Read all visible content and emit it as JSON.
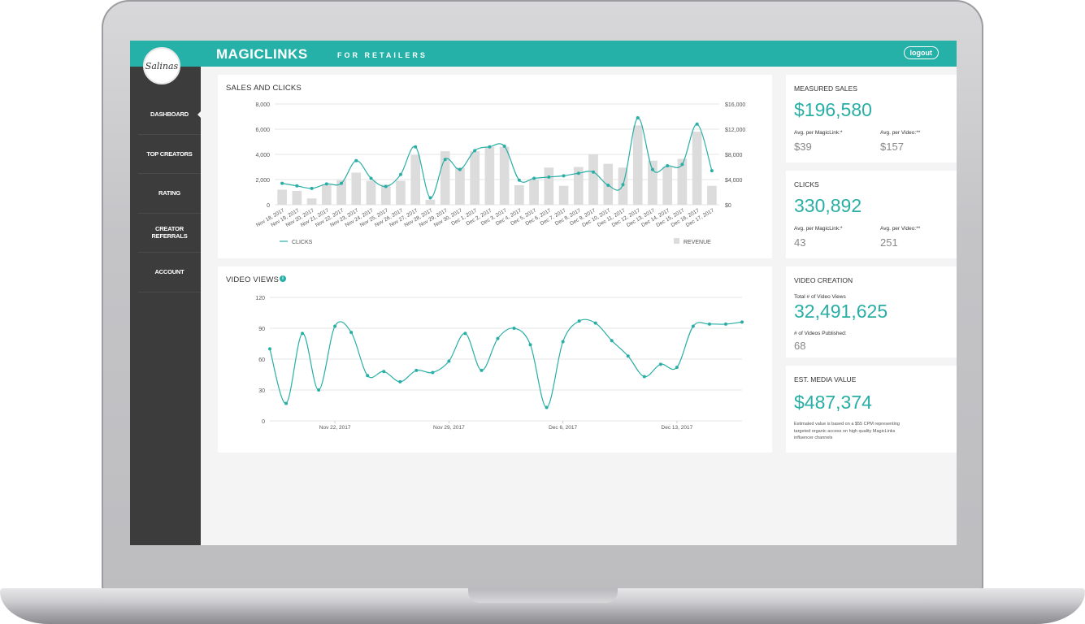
{
  "header": {
    "brand": "MAGICLINKS",
    "brand_sub": "FOR RETAILERS",
    "logout_label": "logout",
    "avatar_text": "Salinas",
    "accent_color": "#26b1a8"
  },
  "sidebar": {
    "items": [
      {
        "label": "DASHBOARD",
        "active": true
      },
      {
        "label": "TOP CREATORS"
      },
      {
        "label": "RATING"
      },
      {
        "label": "CREATOR REFERRALS"
      },
      {
        "label": "ACCOUNT"
      }
    ]
  },
  "stats": {
    "measured_sales": {
      "title": "MEASURED SALES",
      "value": "$196,580",
      "sub1_label": "Avg. per MagicLink:*",
      "sub1_value": "$39",
      "sub2_label": "Avg. per Video:**",
      "sub2_value": "$157"
    },
    "clicks": {
      "title": "CLICKS",
      "value": "330,892",
      "sub1_label": "Avg. per MagicLink:*",
      "sub1_value": "43",
      "sub2_label": "Avg. per Video:**",
      "sub2_value": "251"
    },
    "video_creation": {
      "title": "VIDEO CREATION",
      "label1": "Total # of Video Views",
      "value": "32,491,625",
      "label2": "# of Videos Published:",
      "value2": "68"
    },
    "media_value": {
      "title": "EST. MEDIA VALUE",
      "value": "$487,374",
      "note": "Estimated value is based on a $55 CPM representing targeted organic access on high quality MagicLinks influencer channels"
    }
  },
  "chart_data": [
    {
      "type": "bar",
      "title": "SALES AND CLICKS",
      "categories": [
        "Nov 18, 2017",
        "Nov 19, 2017",
        "Nov 20, 2017",
        "Nov 21, 2017",
        "Nov 22, 2017",
        "Nov 23, 2017",
        "Nov 24, 2017",
        "Nov 25, 2017",
        "Nov 26, 2017",
        "Nov 27, 2017",
        "Nov 28, 2017",
        "Nov 29, 2017",
        "Nov 30, 2017",
        "Dec 1, 2017",
        "Dec 2, 2017",
        "Dec 3, 2017",
        "Dec 4, 2017",
        "Dec 5, 2017",
        "Dec 6, 2017",
        "Dec 7, 2017",
        "Dec 8, 2017",
        "Dec 9, 2017",
        "Dec 10, 2017",
        "Dec 11, 2017",
        "Dec 12, 2017",
        "Dec 13, 2017",
        "Dec 14, 2017",
        "Dec 15, 2017",
        "Dec 16, 2017",
        "Dec 17, 2017"
      ],
      "series": [
        {
          "name": "CLICKS",
          "type": "line",
          "axis": "left",
          "color": "#29aea5",
          "values": [
            1700,
            1500,
            1300,
            1650,
            1700,
            3500,
            2100,
            1450,
            2400,
            4600,
            550,
            3600,
            2800,
            4300,
            4600,
            4650,
            1950,
            2100,
            2200,
            2300,
            2500,
            2600,
            1550,
            1600,
            6900,
            2800,
            3100,
            3200,
            6400,
            2700
          ]
        },
        {
          "name": "REVENUE",
          "type": "bar",
          "axis": "right",
          "color": "#dcdcdc",
          "values": [
            2400,
            2200,
            1000,
            3200,
            3900,
            5100,
            3800,
            3200,
            3800,
            7900,
            800,
            8500,
            5900,
            8500,
            9200,
            9200,
            3100,
            4000,
            5900,
            3000,
            6000,
            8000,
            6500,
            5900,
            12600,
            7000,
            6100,
            7300,
            11600,
            3000
          ]
        }
      ],
      "left_axis": {
        "ticks": [
          "0",
          "2,000",
          "4,000",
          "6,000",
          "8,000"
        ],
        "ylim": [
          0,
          8000
        ]
      },
      "right_axis": {
        "ticks": [
          "$0",
          "$4,000",
          "$8,000",
          "$12,000",
          "$16,000"
        ],
        "ylim": [
          0,
          16000
        ]
      },
      "legend": "bottom",
      "grid": true
    },
    {
      "type": "line",
      "title": "VIDEO VIEWS",
      "color": "#29aea5",
      "x": [
        "Nov 18",
        "Nov 19",
        "Nov 20",
        "Nov 21",
        "Nov 22",
        "Nov 23",
        "Nov 24",
        "Nov 25",
        "Nov 26",
        "Nov 27",
        "Nov 28",
        "Nov 29",
        "Nov 30",
        "Dec 1",
        "Dec 2",
        "Dec 3",
        "Dec 4",
        "Dec 5",
        "Dec 6",
        "Dec 7",
        "Dec 8",
        "Dec 9",
        "Dec 10",
        "Dec 11",
        "Dec 12",
        "Dec 13",
        "Dec 14",
        "Dec 15",
        "Dec 16",
        "Dec 17"
      ],
      "values": [
        70,
        17,
        85,
        30,
        92,
        86,
        44,
        48,
        38,
        49,
        47,
        58,
        85,
        49,
        80,
        90,
        74,
        13,
        77,
        97,
        95,
        78,
        63,
        43,
        55,
        52,
        92,
        94,
        94,
        96
      ],
      "x_ticks": [
        "Nov 22, 2017",
        "Nov 29, 2017",
        "Dec 6, 2017",
        "Dec 13, 2017"
      ],
      "y_ticks": [
        "0",
        "30",
        "60",
        "90",
        "120"
      ],
      "ylim": [
        0,
        120
      ],
      "grid": true
    }
  ]
}
